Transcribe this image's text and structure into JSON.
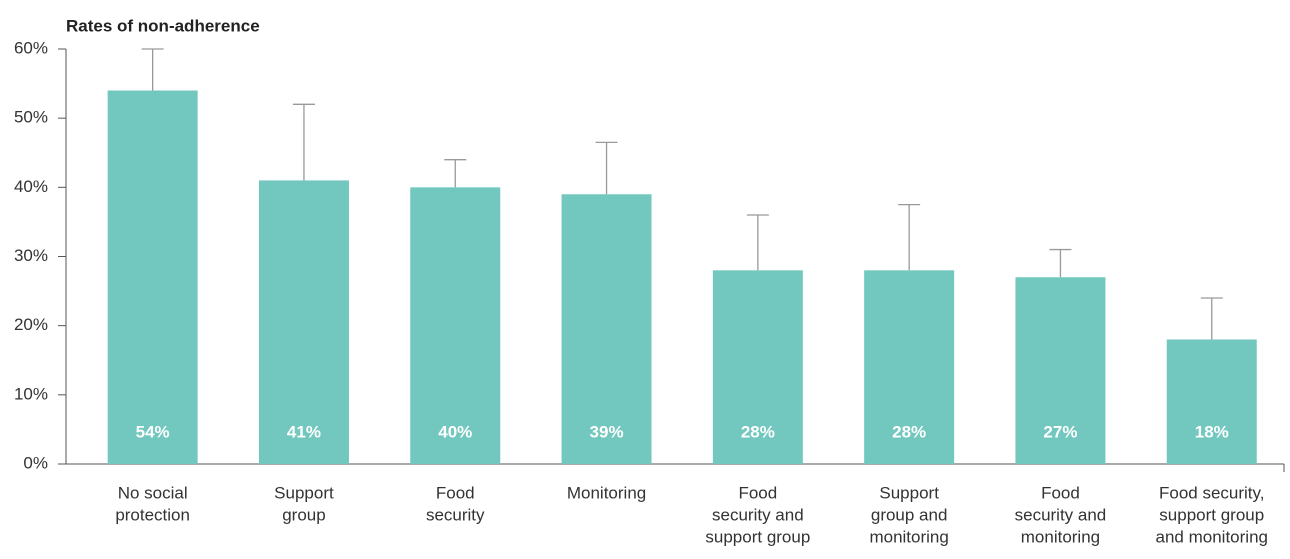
{
  "chart_data": {
    "type": "bar",
    "title": "Rates of non-adherence",
    "categories": [
      [
        "No social",
        "protection"
      ],
      [
        "Support",
        "group"
      ],
      [
        "Food",
        "security"
      ],
      [
        "Monitoring"
      ],
      [
        "Food",
        "security and",
        "support group"
      ],
      [
        "Support",
        "group and",
        "monitoring"
      ],
      [
        "Food",
        "security and",
        "monitoring"
      ],
      [
        "Food security,",
        "support group",
        "and monitoring"
      ]
    ],
    "values": [
      54,
      41,
      40,
      39,
      28,
      28,
      27,
      18
    ],
    "value_labels": [
      "54%",
      "41%",
      "40%",
      "39%",
      "28%",
      "28%",
      "27%",
      "18%"
    ],
    "errors": [
      6,
      11,
      4,
      7.5,
      8,
      9.5,
      4,
      6
    ],
    "color": "#72c8bf",
    "error_color": "#999999",
    "ylim": [
      0,
      60
    ],
    "yticks": [
      {
        "value": 0,
        "label": "0%"
      },
      {
        "value": 10,
        "label": "10%"
      },
      {
        "value": 20,
        "label": "20%"
      },
      {
        "value": 30,
        "label": "30%"
      },
      {
        "value": 40,
        "label": "40%"
      },
      {
        "value": 50,
        "label": "50%"
      },
      {
        "value": 60,
        "label": "60%"
      }
    ],
    "grid": false
  }
}
